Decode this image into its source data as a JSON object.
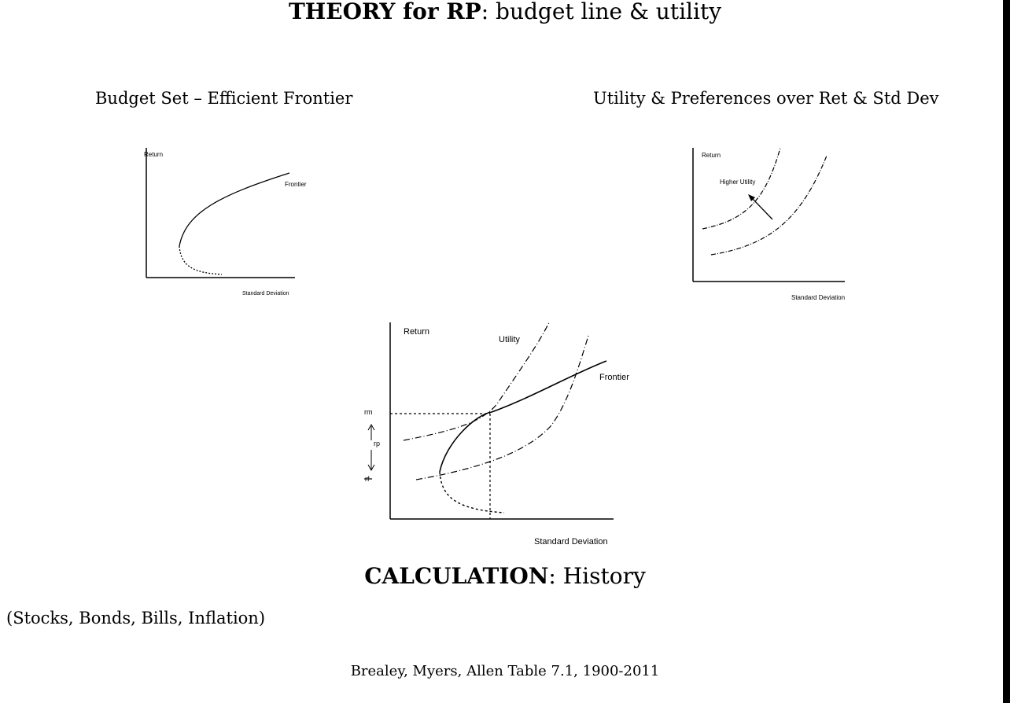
{
  "title_prefix": "THEORY for RP",
  "title_suffix": ": budget line & utility",
  "left_panel": {
    "caption": "Budget Set – Efficient Frontier",
    "ylabel": "Return",
    "xlabel": "Standard Deviation",
    "curve_label": "Frontier"
  },
  "right_panel": {
    "caption": "Utility & Preferences over Ret & Std Dev",
    "ylabel": "Return",
    "xlabel": "Standard Deviation",
    "arrow_label": "Higher Utility"
  },
  "center_panel": {
    "ylabel": "Return",
    "xlabel": "Standard Deviation",
    "frontier_label": "Frontier",
    "utility_label": "Utility",
    "rm_label": "rm",
    "rp_label": "rp",
    "rf_label": "rf"
  },
  "section2_prefix": "CALCULATION",
  "section2_suffix": ": History",
  "list_text": "(Stocks, Bonds, Bills, Inflation)",
  "reference": "Brealey, Myers, Allen Table 7.1, 1900-2011"
}
